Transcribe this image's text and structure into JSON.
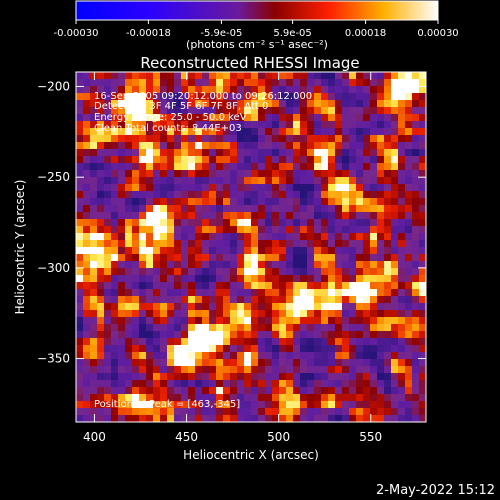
{
  "colorbar": {
    "ticks": [
      "-0.00030",
      "-0.00018",
      "-5.9e-05",
      "5.9e-05",
      "0.00018",
      "0.00030"
    ],
    "tick_values": [
      -0.0003,
      -0.00018,
      -5.9e-05,
      5.9e-05,
      0.00018,
      0.0003
    ],
    "range": [
      -0.0003,
      0.0003
    ],
    "unit_label": "(photons cm⁻² s⁻¹ asec⁻²)"
  },
  "chart_data": {
    "type": "heatmap",
    "title": "Reconstructed RHESSI Image",
    "xlabel": "Heliocentric X (arcsec)",
    "ylabel": "Heliocentric Y (arcsec)",
    "xlim": [
      390,
      580
    ],
    "ylim": [
      -385,
      -192
    ],
    "xticks": [
      400,
      450,
      500,
      550
    ],
    "yticks": [
      -200,
      -250,
      -300,
      -350
    ],
    "xtick_labels": [
      "400",
      "450",
      "500",
      "550"
    ],
    "ytick_labels": [
      "−200",
      "−250",
      "−300",
      "−350"
    ],
    "annotations": [
      "16-Sep-2005 09:20:12.000 to 09:26:12.000",
      "Detectors: 3F 4F 5F 6F 7F 8F, Att 0",
      "Energy Range: 25.0 - 50.0 keV",
      "Clean      Total counts: 8.44E+03"
    ],
    "peak_label": "Position of Peak = [463,-345]",
    "peak": [
      463,
      -345
    ],
    "bright_regions": [
      {
        "x": 463,
        "y": -345,
        "level": 1.0
      },
      {
        "x": 455,
        "y": -235,
        "level": 0.8
      },
      {
        "x": 400,
        "y": -300,
        "level": 0.9
      },
      {
        "x": 545,
        "y": -310,
        "level": 0.85
      },
      {
        "x": 420,
        "y": -205,
        "level": 0.7
      },
      {
        "x": 520,
        "y": -320,
        "level": 0.75
      },
      {
        "x": 565,
        "y": -205,
        "level": 0.6
      },
      {
        "x": 430,
        "y": -275,
        "level": 0.7
      }
    ]
  },
  "timestamp": "2-May-2022 15:12"
}
